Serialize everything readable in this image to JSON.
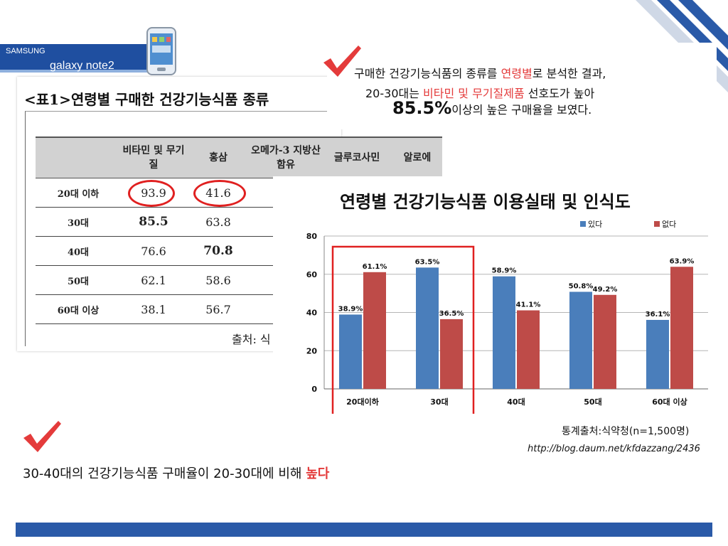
{
  "header": {
    "brand": "SAMSUNG",
    "model": "galaxy note2"
  },
  "table": {
    "title": "<표1>연령별 구매한 건강기능식품 종류",
    "columns": [
      "",
      "비타민 및 무기질",
      "홍삼",
      "오메가-3 지방산 함유",
      "글루코사민",
      "알로에"
    ],
    "rows": [
      {
        "label": "20대 이하",
        "values": [
          "93.9",
          "41.6"
        ]
      },
      {
        "label": "30대",
        "values": [
          "85.5",
          "63.8"
        ]
      },
      {
        "label": "40대",
        "values": [
          "76.6",
          "70.8"
        ]
      },
      {
        "label": "50대",
        "values": [
          "62.1",
          "58.6"
        ]
      },
      {
        "label": "60대 이상",
        "values": [
          "38.1",
          "56.7"
        ]
      }
    ],
    "source": "출처: 식"
  },
  "callout": {
    "line1_a": "구매한 건강기능식품의 종류를 ",
    "line1_red": "연령별",
    "line1_b": "로 분석한 결과,",
    "line2_a": "20-30대는 ",
    "line2_red": "비타민 및 무기질제품",
    "line2_b": " 선호도가 높아",
    "line3_num": "85.5%",
    "line3_b": "이상의 높은 구매율을 보였다."
  },
  "chart_data": {
    "type": "bar",
    "title": "연령별 건강기능식품 이용실태 및 인식도",
    "categories": [
      "20대이하",
      "30대",
      "40대",
      "50대",
      "60대 이상"
    ],
    "series": [
      {
        "name": "있다",
        "values": [
          38.9,
          63.5,
          58.9,
          50.8,
          36.1
        ],
        "labels": [
          "38.9%",
          "63.5%",
          "58.9%",
          "50.8%",
          "36.1%"
        ]
      },
      {
        "name": "없다",
        "values": [
          61.1,
          36.5,
          41.1,
          49.2,
          63.9
        ],
        "labels": [
          "61.1%",
          "36.5%",
          "41.1%",
          "49.2%",
          "63.9%"
        ]
      }
    ],
    "yticks": [
      "0",
      "20",
      "40",
      "60",
      "80"
    ],
    "ylim": [
      0,
      80
    ],
    "legend": "top-right",
    "grid": true,
    "colors": {
      "있다": "#4a7ebb",
      "없다": "#be4b48"
    }
  },
  "bottom": {
    "stat_source": "통계출처:식약청(n=1,500명)",
    "url": "http://blog.daum.net/kfdazzang/2436",
    "line_a": "30-40대의 건강기능식품 구매율이 20-30대에 비해 ",
    "line_red": "높다"
  },
  "accent": {
    "red": "#e43b3b",
    "blue": "#2a5aa8"
  }
}
